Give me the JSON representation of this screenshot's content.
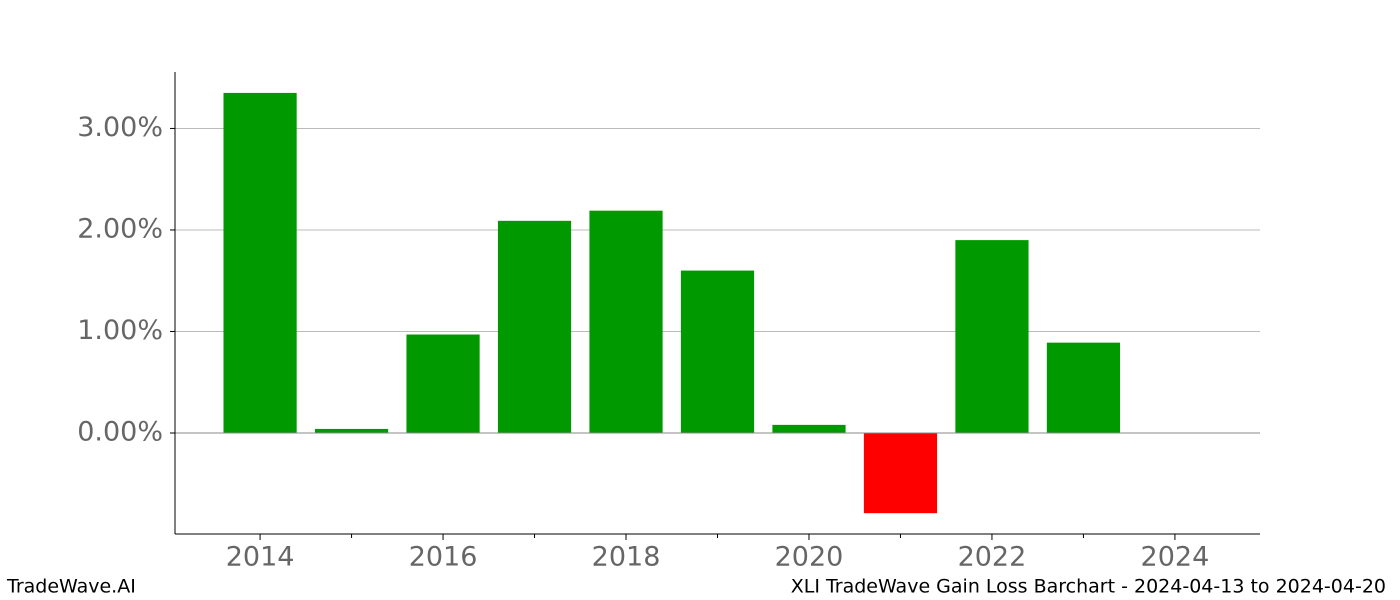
{
  "chart_data": {
    "type": "bar",
    "x": [
      2014,
      2015,
      2016,
      2017,
      2018,
      2019,
      2020,
      2021,
      2022,
      2023
    ],
    "values": [
      3.35,
      0.04,
      0.97,
      2.09,
      2.19,
      1.6,
      0.08,
      -0.79,
      1.9,
      0.89
    ],
    "colors": [
      "#009900",
      "#009900",
      "#009900",
      "#009900",
      "#009900",
      "#009900",
      "#009900",
      "#ff0000",
      "#009900",
      "#009900"
    ],
    "xlim": [
      2013.07,
      2024.93
    ],
    "xticks": [
      2014,
      2016,
      2018,
      2020,
      2022,
      2024
    ],
    "xminorticks": [
      2015,
      2017,
      2019,
      2021,
      2023
    ],
    "ylim": [
      -0.995,
      3.556
    ],
    "yticks": [
      {
        "value": 0,
        "label": "0.00%"
      },
      {
        "value": 1,
        "label": "1.00%"
      },
      {
        "value": 2,
        "label": "2.00%"
      },
      {
        "value": 3,
        "label": "3.00%"
      }
    ],
    "grid": true,
    "footer_left": "TradeWave.AI",
    "footer_right": "XLI TradeWave Gain Loss Barchart - 2024-04-13 to 2024-04-20"
  }
}
